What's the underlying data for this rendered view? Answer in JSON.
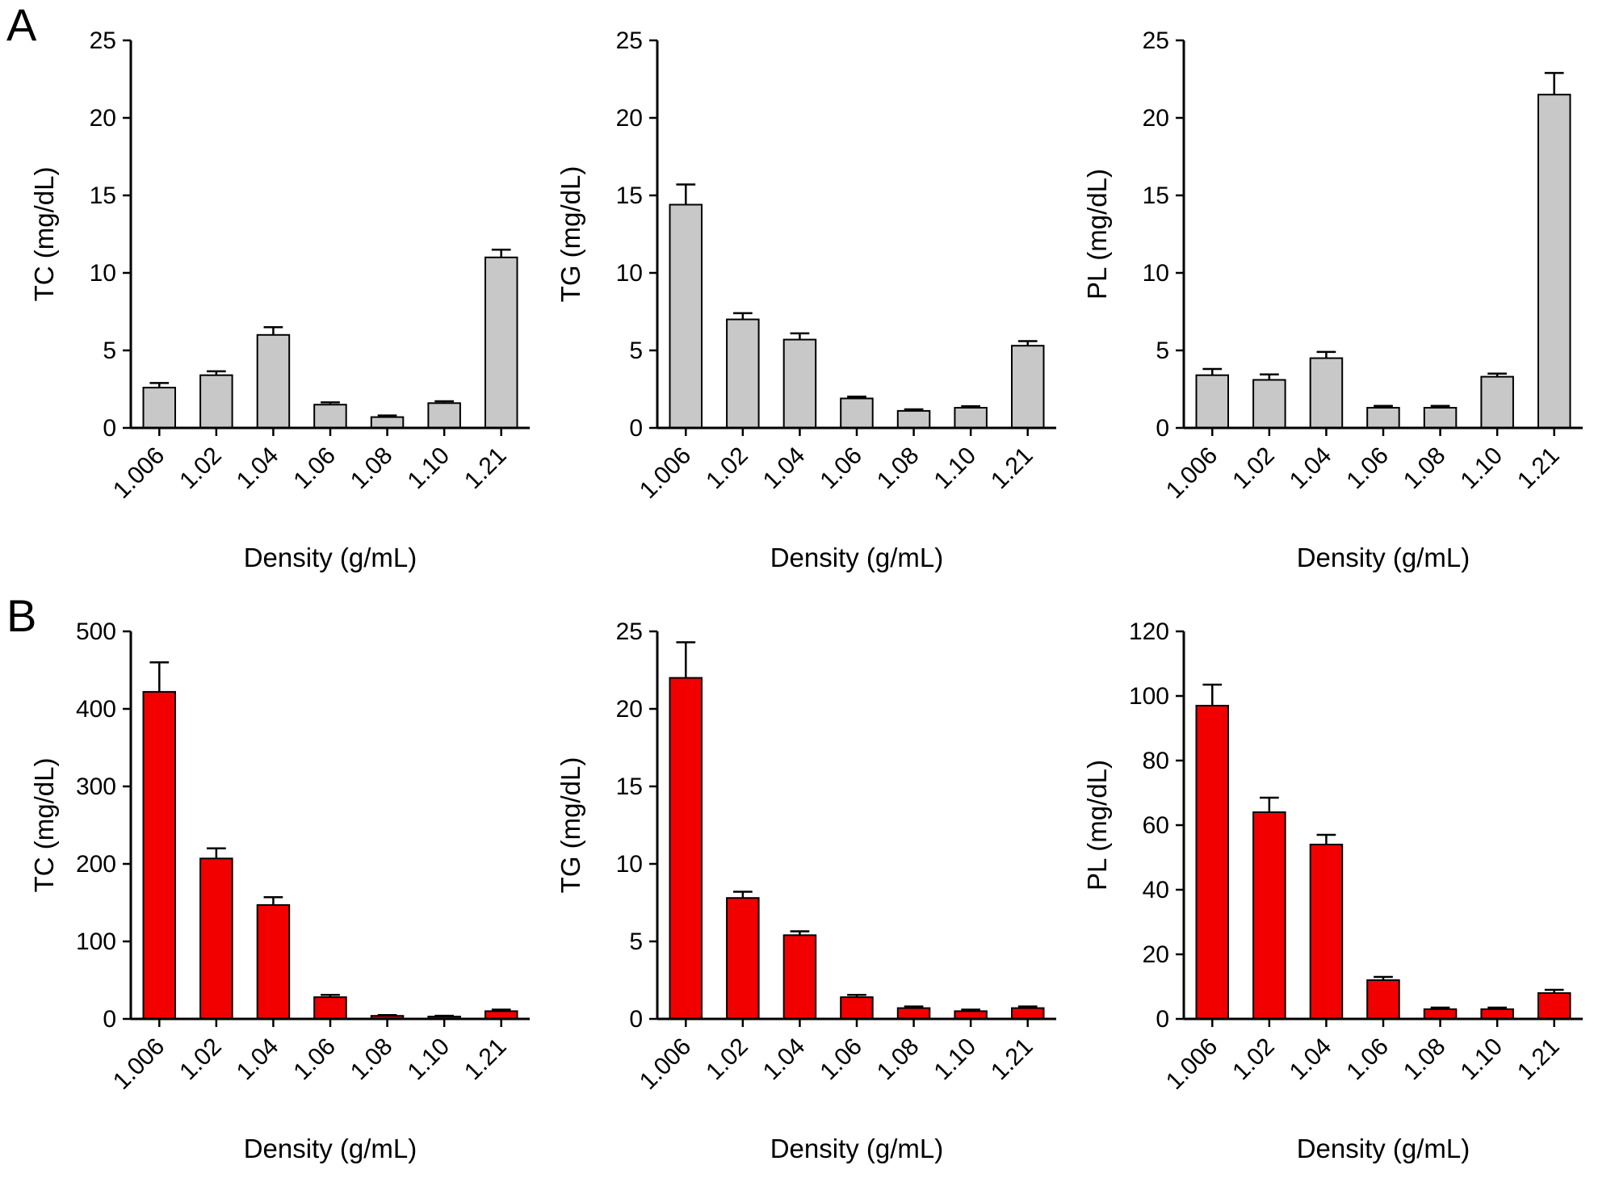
{
  "figure": {
    "background": "#ffffff",
    "panels": [
      {
        "label": "A"
      },
      {
        "label": "B"
      }
    ]
  },
  "chart_data": [
    {
      "type": "bar",
      "panel": "A",
      "title": "",
      "ylabel": "TC (mg/dL)",
      "xlabel": "Density (g/mL)",
      "categories": [
        "1.006",
        "1.02",
        "1.04",
        "1.06",
        "1.08",
        "1.10",
        "1.21"
      ],
      "values": [
        2.6,
        3.4,
        6.0,
        1.5,
        0.7,
        1.6,
        11.0
      ],
      "errors": [
        0.3,
        0.25,
        0.5,
        0.15,
        0.1,
        0.12,
        0.5
      ],
      "ylim": [
        0,
        25
      ],
      "yticks": [
        0,
        5,
        10,
        15,
        20,
        25
      ],
      "bar_color": "#c8c8c8",
      "grid": false,
      "legend": null
    },
    {
      "type": "bar",
      "panel": "A",
      "title": "",
      "ylabel": "TG (mg/dL)",
      "xlabel": "Density (g/mL)",
      "categories": [
        "1.006",
        "1.02",
        "1.04",
        "1.06",
        "1.08",
        "1.10",
        "1.21"
      ],
      "values": [
        14.4,
        7.0,
        5.7,
        1.9,
        1.1,
        1.3,
        5.3
      ],
      "errors": [
        1.3,
        0.4,
        0.4,
        0.12,
        0.1,
        0.1,
        0.3
      ],
      "ylim": [
        0,
        25
      ],
      "yticks": [
        0,
        5,
        10,
        15,
        20,
        25
      ],
      "bar_color": "#c8c8c8",
      "grid": false,
      "legend": null
    },
    {
      "type": "bar",
      "panel": "A",
      "title": "",
      "ylabel": "PL (mg/dL)",
      "xlabel": "Density (g/mL)",
      "categories": [
        "1.006",
        "1.02",
        "1.04",
        "1.06",
        "1.08",
        "1.10",
        "1.21"
      ],
      "values": [
        3.4,
        3.1,
        4.5,
        1.3,
        1.3,
        3.3,
        21.5
      ],
      "errors": [
        0.4,
        0.35,
        0.4,
        0.12,
        0.12,
        0.2,
        1.4
      ],
      "ylim": [
        0,
        25
      ],
      "yticks": [
        0,
        5,
        10,
        15,
        20,
        25
      ],
      "bar_color": "#c8c8c8",
      "grid": false,
      "legend": null
    },
    {
      "type": "bar",
      "panel": "B",
      "title": "",
      "ylabel": "TC (mg/dL)",
      "xlabel": "Density (g/mL)",
      "categories": [
        "1.006",
        "1.02",
        "1.04",
        "1.06",
        "1.08",
        "1.10",
        "1.21"
      ],
      "values": [
        422,
        207,
        147,
        28,
        4,
        3,
        10
      ],
      "errors": [
        38,
        13,
        10,
        3,
        1,
        1,
        2
      ],
      "ylim": [
        0,
        500
      ],
      "yticks": [
        0,
        100,
        200,
        300,
        400,
        500
      ],
      "bar_color": "#f20000",
      "grid": false,
      "legend": null
    },
    {
      "type": "bar",
      "panel": "B",
      "title": "",
      "ylabel": "TG (mg/dL)",
      "xlabel": "Density (g/mL)",
      "categories": [
        "1.006",
        "1.02",
        "1.04",
        "1.06",
        "1.08",
        "1.10",
        "1.21"
      ],
      "values": [
        22.0,
        7.8,
        5.4,
        1.4,
        0.7,
        0.5,
        0.7
      ],
      "errors": [
        2.3,
        0.4,
        0.25,
        0.15,
        0.1,
        0.1,
        0.1
      ],
      "ylim": [
        0,
        25
      ],
      "yticks": [
        0,
        5,
        10,
        15,
        20,
        25
      ],
      "bar_color": "#f20000",
      "grid": false,
      "legend": null
    },
    {
      "type": "bar",
      "panel": "B",
      "title": "",
      "ylabel": "PL (mg/dL)",
      "xlabel": "Density (g/mL)",
      "categories": [
        "1.006",
        "1.02",
        "1.04",
        "1.06",
        "1.08",
        "1.10",
        "1.21"
      ],
      "values": [
        97,
        64,
        54,
        12,
        3,
        3,
        8
      ],
      "errors": [
        6.5,
        4.5,
        3,
        1,
        0.5,
        0.5,
        1
      ],
      "ylim": [
        0,
        120
      ],
      "yticks": [
        0,
        20,
        40,
        60,
        80,
        100,
        120
      ],
      "bar_color": "#f20000",
      "grid": false,
      "legend": null
    }
  ]
}
